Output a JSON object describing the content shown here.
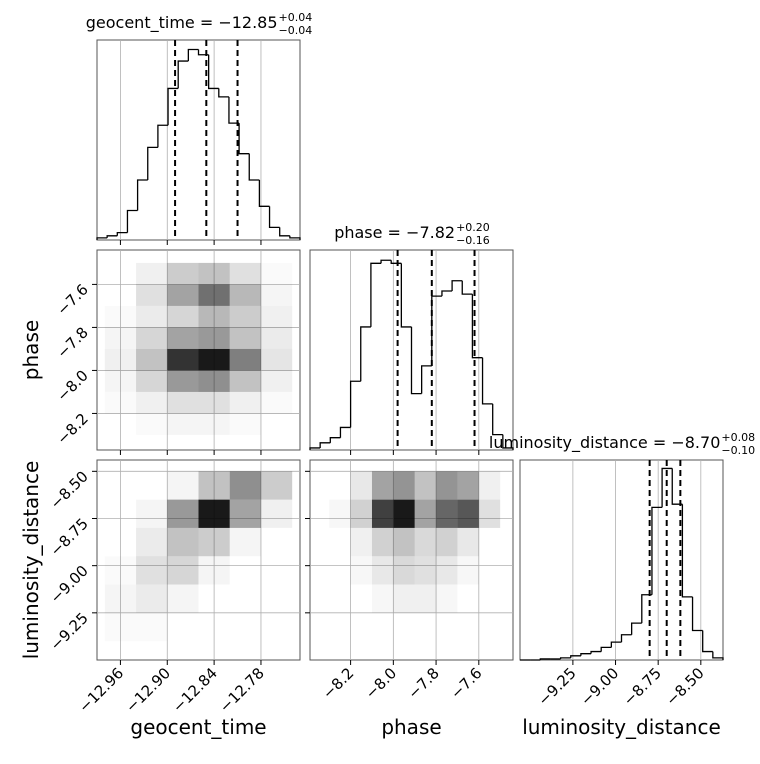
{
  "chart_data": {
    "type": "corner",
    "grid": true,
    "color": "#000000",
    "parameters": [
      {
        "name": "geocent_time",
        "title": {
          "text": "geocent_time = −12.85",
          "upper": "+0.04",
          "lower": "−0.04"
        },
        "xlim": [
          -12.99,
          -12.73
        ],
        "ticks": [
          {
            "value": -12.96,
            "label": "−12.96"
          },
          {
            "value": -12.9,
            "label": "−12.90"
          },
          {
            "value": -12.84,
            "label": "−12.84"
          },
          {
            "value": -12.78,
            "label": "−12.78"
          }
        ],
        "hist": {
          "bins": [
            -12.99,
            -12.977,
            -12.964,
            -12.951,
            -12.938,
            -12.925,
            -12.912,
            -12.899,
            -12.886,
            -12.873,
            -12.86,
            -12.847,
            -12.834,
            -12.821,
            -12.808,
            -12.795,
            -12.782,
            -12.769,
            -12.756,
            -12.743,
            -12.73
          ],
          "counts": [
            2,
            4,
            7,
            28,
            57,
            88,
            109,
            144,
            170,
            181,
            176,
            144,
            136,
            111,
            82,
            57,
            32,
            12,
            4,
            2
          ],
          "ylim": [
            0,
            190
          ],
          "quantiles": [
            -12.89,
            -12.85,
            -12.81
          ]
        },
        "pairs": []
      },
      {
        "name": "phase",
        "title": {
          "text": "phase = −7.82",
          "upper": "+0.20",
          "lower": "−0.16"
        },
        "xlim": [
          -8.39,
          -7.44
        ],
        "ylim": [
          -8.37,
          -7.44
        ],
        "ticks": [
          {
            "value": -8.2,
            "label": "−8.2"
          },
          {
            "value": -8.0,
            "label": "−8.0"
          },
          {
            "value": -7.8,
            "label": "−7.8"
          },
          {
            "value": -7.6,
            "label": "−7.6"
          }
        ],
        "hist": {
          "bins": [
            -8.39,
            -8.3425,
            -8.295,
            -8.2475,
            -8.2,
            -8.1525,
            -8.105,
            -8.0575,
            -8.01,
            -7.9625,
            -7.915,
            -7.8675,
            -7.82,
            -7.7725,
            -7.725,
            -7.6775,
            -7.63,
            -7.5825,
            -7.535,
            -7.4875,
            -7.44
          ],
          "counts": [
            2,
            7,
            12,
            22,
            67,
            120,
            182,
            185,
            182,
            120,
            55,
            82,
            150,
            155,
            165,
            152,
            90,
            45,
            15,
            2
          ],
          "ylim": [
            0,
            195
          ],
          "quantiles": [
            -7.98,
            -7.82,
            -7.62
          ]
        },
        "pairs": [
          {
            "xbins": [
              -12.98,
              -12.94,
              -12.9,
              -12.86,
              -12.82,
              -12.78,
              -12.74
            ],
            "ybins": [
              -8.3,
              -8.2,
              -8.1,
              -8.0,
              -7.9,
              -7.8,
              -7.7,
              -7.6,
              -7.5
            ],
            "counts": [
              [
                0,
                1,
                2,
                2,
                1,
                0
              ],
              [
                1,
                3,
                6,
                6,
                3,
                1
              ],
              [
                2,
                8,
                20,
                22,
                12,
                3
              ],
              [
                3,
                12,
                40,
                45,
                25,
                5
              ],
              [
                2,
                8,
                18,
                20,
                12,
                4
              ],
              [
                1,
                4,
                8,
                14,
                10,
                3
              ],
              [
                0,
                6,
                18,
                28,
                14,
                2
              ],
              [
                0,
                3,
                10,
                12,
                6,
                1
              ]
            ]
          }
        ]
      },
      {
        "name": "luminosity_distance",
        "title": {
          "text": "luminosity_distance = −8.70",
          "upper": "+0.08",
          "lower": "−0.10"
        },
        "xlim": [
          -9.56,
          -8.37
        ],
        "ylim": [
          -9.5,
          -8.44
        ],
        "ticks": [
          {
            "value": -9.25,
            "label": "−9.25"
          },
          {
            "value": -9.0,
            "label": "−9.00"
          },
          {
            "value": -8.75,
            "label": "−8.75"
          },
          {
            "value": -8.5,
            "label": "−8.50"
          }
        ],
        "hist": {
          "bins": [
            -9.56,
            -9.5005,
            -9.441,
            -9.3815,
            -9.322,
            -9.2625,
            -9.203,
            -9.1435,
            -9.084,
            -9.0245,
            -8.965,
            -8.9055,
            -8.846,
            -8.7865,
            -8.727,
            -8.6675,
            -8.608,
            -8.5485,
            -8.489,
            -8.4295,
            -8.37
          ],
          "counts": [
            0,
            0,
            1,
            1,
            2,
            4,
            6,
            8,
            12,
            17,
            24,
            35,
            62,
            145,
            182,
            148,
            60,
            28,
            8,
            2
          ],
          "ylim": [
            0,
            190
          ],
          "quantiles": [
            -8.8,
            -8.7,
            -8.62
          ]
        },
        "pairs": [
          {
            "xbins": [
              -12.98,
              -12.94,
              -12.9,
              -12.86,
              -12.82,
              -12.78,
              -12.74
            ],
            "ybins": [
              -9.4,
              -9.25,
              -9.1,
              -8.95,
              -8.8,
              -8.65,
              -8.5
            ],
            "counts": [
              [
                1,
                1,
                0,
                0,
                0,
                0
              ],
              [
                2,
                4,
                2,
                0,
                0,
                0
              ],
              [
                1,
                6,
                8,
                2,
                0,
                0
              ],
              [
                0,
                4,
                12,
                10,
                2,
                0
              ],
              [
                0,
                2,
                20,
                45,
                18,
                3
              ],
              [
                0,
                0,
                2,
                12,
                22,
                10
              ]
            ]
          },
          {
            "xbins": [
              -8.3,
              -8.2,
              -8.1,
              -8.0,
              -7.9,
              -7.8,
              -7.7,
              -7.6,
              -7.5
            ],
            "ybins": [
              -9.4,
              -9.25,
              -9.1,
              -8.95,
              -8.8,
              -8.65,
              -8.5
            ],
            "counts": [
              [
                0,
                0,
                0,
                0,
                0,
                0,
                0,
                0
              ],
              [
                0,
                0,
                1,
                2,
                2,
                1,
                0,
                0
              ],
              [
                0,
                1,
                3,
                5,
                4,
                3,
                1,
                0
              ],
              [
                0,
                2,
                6,
                8,
                5,
                6,
                3,
                0
              ],
              [
                1,
                6,
                25,
                30,
                12,
                20,
                22,
                4
              ],
              [
                0,
                3,
                12,
                14,
                8,
                14,
                12,
                2
              ]
            ]
          }
        ]
      }
    ]
  }
}
